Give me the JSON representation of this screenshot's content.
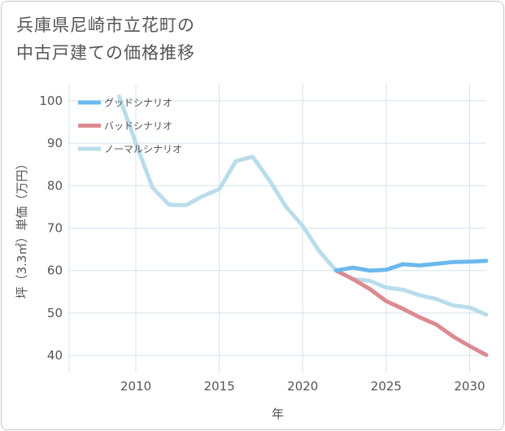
{
  "title_lines": [
    "兵庫県尼崎市立花町の",
    "中古戸建ての価格推移"
  ],
  "chart_data": {
    "type": "line",
    "xlabel": "年",
    "ylabel": "坪（3.3㎡）単価（万円）",
    "xlim": [
      2006,
      2031
    ],
    "ylim": [
      36,
      104
    ],
    "xticks": [
      2010,
      2015,
      2020,
      2025,
      2030
    ],
    "yticks": [
      40,
      50,
      60,
      70,
      80,
      90,
      100
    ],
    "grid": true,
    "legend_position": "top-left",
    "series": [
      {
        "name": "グッドシナリオ",
        "color": "#6bb8ee",
        "x": [
          2022,
          2023,
          2024,
          2025,
          2026,
          2027,
          2028,
          2029,
          2030,
          2031
        ],
        "y": [
          60.0,
          60.7,
          60.0,
          60.2,
          61.5,
          61.2,
          61.6,
          62.0,
          62.1,
          62.3
        ]
      },
      {
        "name": "バッドシナリオ",
        "color": "#dc8a92",
        "x": [
          2022,
          2023,
          2024,
          2025,
          2026,
          2027,
          2028,
          2029,
          2030,
          2031
        ],
        "y": [
          60.0,
          58.0,
          55.7,
          52.8,
          51.0,
          49.0,
          47.3,
          44.5,
          42.2,
          40.1
        ]
      },
      {
        "name": "ノーマルシナリオ",
        "color": "#b9ddea",
        "x": [
          2009,
          2010,
          2011,
          2012,
          2013,
          2014,
          2015,
          2016,
          2017,
          2018,
          2019,
          2020,
          2021,
          2022,
          2023,
          2024,
          2025,
          2026,
          2027,
          2028,
          2029,
          2030,
          2031
        ],
        "y": [
          101.0,
          90.0,
          79.5,
          75.5,
          75.4,
          77.5,
          79.2,
          85.8,
          86.8,
          81.3,
          75.0,
          70.5,
          64.5,
          60.0,
          58.0,
          57.6,
          56.0,
          55.5,
          54.2,
          53.3,
          51.8,
          51.3,
          49.6
        ]
      }
    ]
  }
}
